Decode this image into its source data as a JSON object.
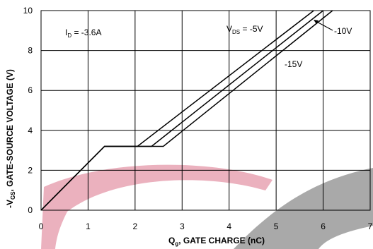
{
  "chart_data": {
    "type": "line",
    "title": "",
    "xlabel": {
      "main": "Q",
      "sub": "g",
      "rest": ", GATE CHARGE (nC)"
    },
    "ylabel": {
      "prefix": "-V",
      "sub": "GS",
      "rest": ", GATE-SOURCE VOLTAGE (V)"
    },
    "xlim": [
      0,
      7
    ],
    "ylim": [
      0,
      10
    ],
    "xticks": [
      "0",
      "1",
      "2",
      "3",
      "4",
      "5",
      "6",
      "7"
    ],
    "yticks": [
      "0",
      "2",
      "4",
      "6",
      "8",
      "10"
    ],
    "grid": true,
    "series": [
      {
        "name": "-5V",
        "x": [
          0,
          1.35,
          2.05,
          5.8
        ],
        "y": [
          0,
          3.2,
          3.2,
          10
        ]
      },
      {
        "name": "-10V",
        "x": [
          0,
          1.35,
          2.35,
          6.0
        ],
        "y": [
          0,
          3.2,
          3.2,
          10
        ]
      },
      {
        "name": "-15V",
        "x": [
          0,
          1.35,
          2.6,
          6.2
        ],
        "y": [
          0,
          3.2,
          3.2,
          10
        ]
      }
    ],
    "annotations": {
      "id": {
        "main": "I",
        "sub": "D",
        "rest": " = -3.6A"
      },
      "vds": {
        "main": "V",
        "sub": "DS",
        "rest": " = -5V"
      },
      "v10": "-10V",
      "v15": "-15V"
    },
    "colors": {
      "line": "#000000",
      "grid": "#000000",
      "watermark_red": "#e8a3b3",
      "watermark_gray": "#9a9a9a"
    }
  }
}
